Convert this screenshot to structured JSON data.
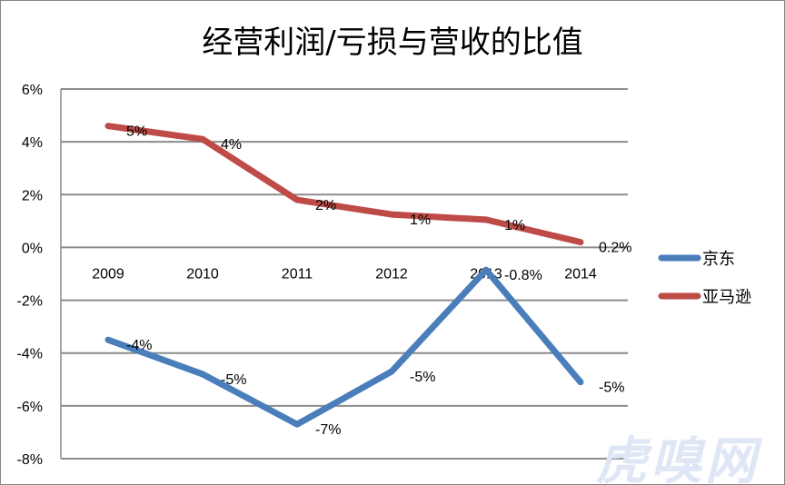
{
  "chart_data": {
    "type": "line",
    "title": "经营利润/亏损与营收的比值",
    "categories": [
      "2009",
      "2010",
      "2011",
      "2012",
      "2013",
      "2014"
    ],
    "ylim": [
      -8,
      6
    ],
    "yticks": [
      "-8%",
      "-6%",
      "-4%",
      "-2%",
      "0%",
      "2%",
      "4%",
      "6%"
    ],
    "ytick_values": [
      -8,
      -6,
      -4,
      -2,
      0,
      2,
      4,
      6
    ],
    "grid": true,
    "legend": "right",
    "series": [
      {
        "name": "京东",
        "color": "#4a7ebb",
        "values": [
          -3.5,
          -4.8,
          -6.7,
          -4.7,
          -0.85,
          -5.1
        ],
        "labels": [
          "-4%",
          "-5%",
          "-7%",
          "-5%",
          "-0.8%",
          "-5%"
        ]
      },
      {
        "name": "亚马逊",
        "color": "#be4b48",
        "values": [
          4.6,
          4.1,
          1.8,
          1.25,
          1.05,
          0.2
        ],
        "labels": [
          "5%",
          "4%",
          "2%",
          "1%",
          "1%",
          "0.2%"
        ]
      }
    ]
  },
  "watermark": "虎嗅网"
}
